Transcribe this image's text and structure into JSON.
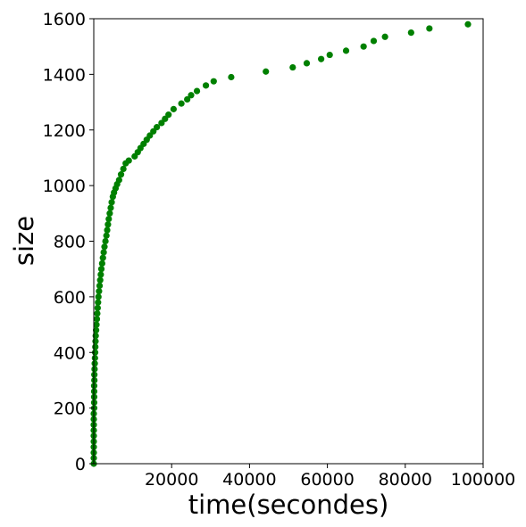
{
  "chart_data": {
    "type": "scatter",
    "title": "",
    "xlabel": "time(secondes)",
    "ylabel": "size",
    "xlim": [
      0,
      100000
    ],
    "ylim": [
      0,
      1600
    ],
    "xticks": [
      20000,
      40000,
      60000,
      80000,
      100000
    ],
    "yticks": [
      0,
      200,
      400,
      600,
      800,
      1000,
      1200,
      1400,
      1600
    ],
    "xtick_labels": [
      "20000",
      "40000",
      "60000",
      "80000",
      "100000"
    ],
    "ytick_labels": [
      "0",
      "200",
      "400",
      "600",
      "800",
      "1000",
      "1200",
      "1400",
      "1600"
    ],
    "grid": false,
    "color": "#008000",
    "series": [
      {
        "points": [
          [
            0,
            0
          ],
          [
            0,
            20
          ],
          [
            0,
            40
          ],
          [
            0,
            60
          ],
          [
            0,
            80
          ],
          [
            0,
            100
          ],
          [
            0,
            120
          ],
          [
            0,
            140
          ],
          [
            0,
            160
          ],
          [
            0,
            180
          ],
          [
            100,
            200
          ],
          [
            100,
            220
          ],
          [
            100,
            240
          ],
          [
            100,
            260
          ],
          [
            100,
            280
          ],
          [
            150,
            300
          ],
          [
            150,
            320
          ],
          [
            200,
            340
          ],
          [
            250,
            360
          ],
          [
            300,
            380
          ],
          [
            350,
            400
          ],
          [
            400,
            420
          ],
          [
            450,
            440
          ],
          [
            500,
            460
          ],
          [
            600,
            480
          ],
          [
            700,
            500
          ],
          [
            800,
            520
          ],
          [
            900,
            540
          ],
          [
            1000,
            560
          ],
          [
            1100,
            580
          ],
          [
            1200,
            600
          ],
          [
            1350,
            620
          ],
          [
            1500,
            640
          ],
          [
            1650,
            660
          ],
          [
            1800,
            680
          ],
          [
            1950,
            700
          ],
          [
            2150,
            720
          ],
          [
            2350,
            740
          ],
          [
            2550,
            760
          ],
          [
            2750,
            780
          ],
          [
            3000,
            800
          ],
          [
            3250,
            820
          ],
          [
            3450,
            840
          ],
          [
            3650,
            860
          ],
          [
            3850,
            880
          ],
          [
            4100,
            900
          ],
          [
            4350,
            920
          ],
          [
            4600,
            940
          ],
          [
            4900,
            960
          ],
          [
            5200,
            975
          ],
          [
            5600,
            990
          ],
          [
            6000,
            1005
          ],
          [
            6500,
            1020
          ],
          [
            7000,
            1040
          ],
          [
            7600,
            1060
          ],
          [
            8200,
            1080
          ],
          [
            9000,
            1090
          ],
          [
            10500,
            1105
          ],
          [
            11300,
            1120
          ],
          [
            12000,
            1135
          ],
          [
            12800,
            1150
          ],
          [
            13600,
            1165
          ],
          [
            14400,
            1180
          ],
          [
            15300,
            1195
          ],
          [
            16200,
            1210
          ],
          [
            17400,
            1225
          ],
          [
            18300,
            1240
          ],
          [
            19200,
            1255
          ],
          [
            20500,
            1275
          ],
          [
            22500,
            1295
          ],
          [
            24000,
            1310
          ],
          [
            25000,
            1325
          ],
          [
            26500,
            1340
          ],
          [
            28800,
            1360
          ],
          [
            30800,
            1375
          ],
          [
            35300,
            1390
          ],
          [
            44200,
            1410
          ],
          [
            51100,
            1425
          ],
          [
            54700,
            1440
          ],
          [
            58400,
            1455
          ],
          [
            60600,
            1470
          ],
          [
            64800,
            1485
          ],
          [
            69300,
            1500
          ],
          [
            71900,
            1520
          ],
          [
            74800,
            1535
          ],
          [
            81500,
            1550
          ],
          [
            86200,
            1565
          ],
          [
            96100,
            1580
          ]
        ]
      }
    ]
  }
}
